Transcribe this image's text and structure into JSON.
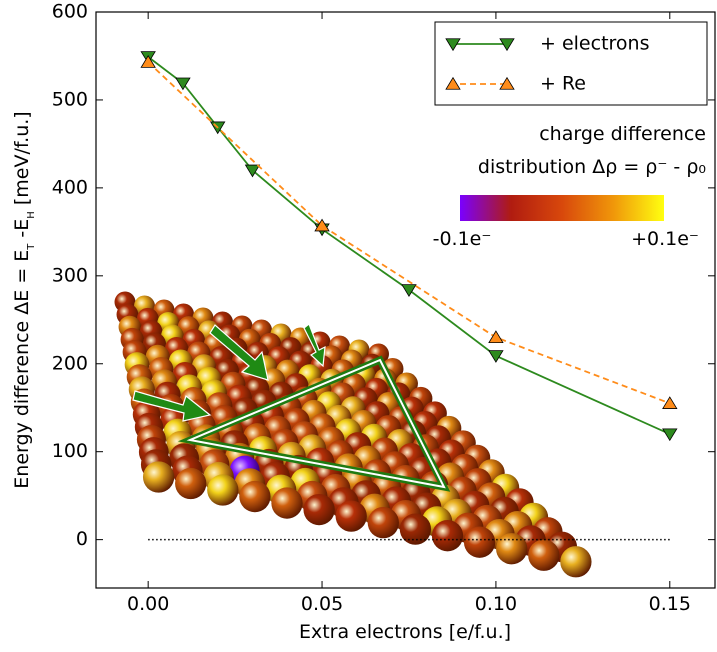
{
  "chart_data": {
    "type": "line",
    "xlabel": "Extra electrons [e/f.u.]",
    "ylabel": [
      "Energy difference ΔE = E",
      "T",
      " -E",
      "H",
      "  [meV/f.u.]"
    ],
    "xlim": [
      -0.015,
      0.163
    ],
    "ylim": [
      -55,
      600
    ],
    "xticks": [
      {
        "value": 0,
        "label": "0.00"
      },
      {
        "value": 0.05,
        "label": "0.05"
      },
      {
        "value": 0.1,
        "label": "0.10"
      },
      {
        "value": 0.15,
        "label": "0.15"
      }
    ],
    "yticks": [
      0,
      100,
      200,
      300,
      400,
      500,
      600
    ],
    "legend": "upper right",
    "series": [
      {
        "name": "+ electrons",
        "color": "#2d8a1e",
        "marker": "v",
        "linestyle": "solid",
        "x": [
          0,
          0.01,
          0.02,
          0.03,
          0.05,
          0.075,
          0.1,
          0.15
        ],
        "values": [
          549,
          519,
          469,
          420,
          353,
          284,
          209,
          120
        ]
      },
      {
        "name": "+ Re",
        "color": "#ff8c1a",
        "marker": "^",
        "linestyle": "dashed",
        "x": [
          0,
          0.05,
          0.1,
          0.15
        ],
        "values": [
          543,
          357,
          230,
          155
        ]
      }
    ],
    "hline": {
      "y": 0,
      "x": [
        0,
        0.15
      ]
    },
    "colorbar": {
      "title": [
        "charge difference",
        "distribution Δρ = ρ⁻ - ρ₀"
      ],
      "labels": [
        "-0.1e⁻",
        "+0.1e⁻"
      ],
      "colors": [
        "#7a00ff",
        "#b01c10",
        "#d8480c",
        "#f0960a",
        "#ffff10"
      ]
    }
  }
}
